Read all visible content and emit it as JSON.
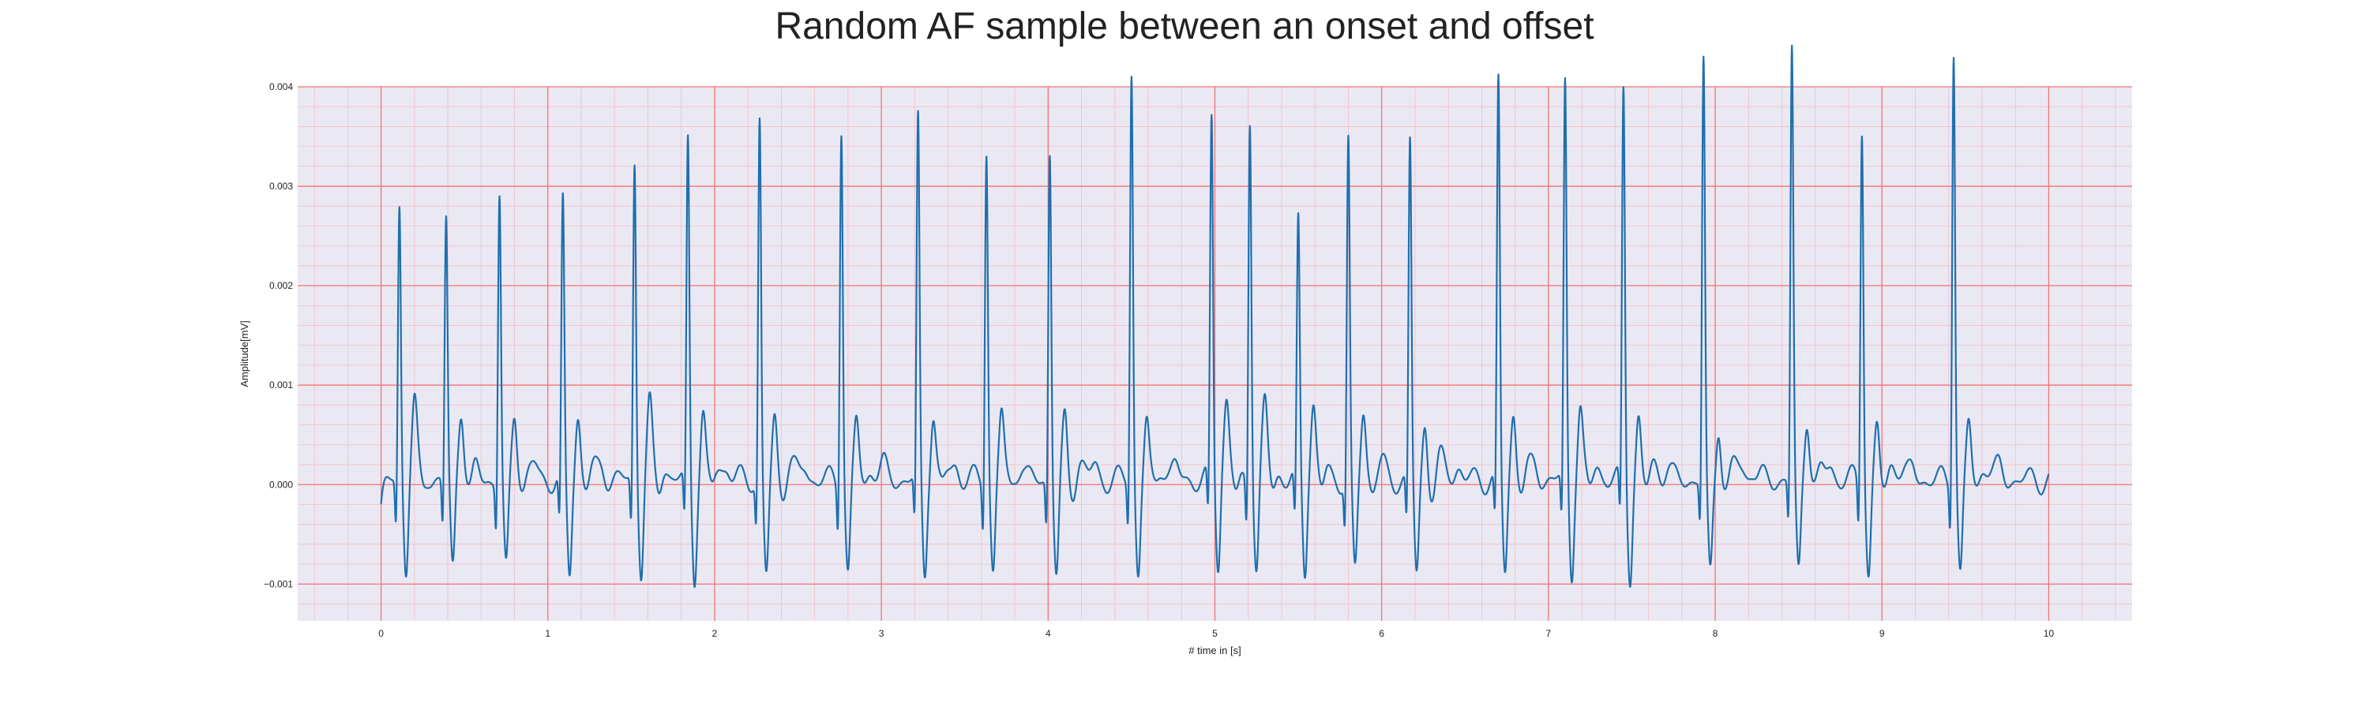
{
  "chart_data": {
    "type": "line",
    "title": "Random AF sample between an onset and offset",
    "xlabel": "# time in [s]",
    "ylabel": "Amplitude[mV]",
    "xlim": [
      -0.5,
      10.5
    ],
    "ylim": [
      -0.00137,
      0.004
    ],
    "xticks": [
      0,
      1,
      2,
      3,
      4,
      5,
      6,
      7,
      8,
      9,
      10
    ],
    "yticks": [
      -0.001,
      0.0,
      0.001,
      0.002,
      0.003,
      0.004
    ],
    "ytick_labels": [
      "−0.001",
      "0.000",
      "0.001",
      "0.002",
      "0.003",
      "0.004"
    ],
    "grid": true,
    "minor_grid": true,
    "background_color": "#eae9f3",
    "major_grid_color": "#f47272",
    "minor_grid_color": "#f4bcc6",
    "series": [
      {
        "color": "#1f6fae",
        "start": 0.0,
        "end": 10.0,
        "baseline_start": -0.00025,
        "peaks": [
          {
            "t": 0.11,
            "amp": 0.00215
          },
          {
            "t": 0.39,
            "amp": 0.00202
          },
          {
            "t": 0.71,
            "amp": 0.00229
          },
          {
            "t": 1.09,
            "amp": 0.00215
          },
          {
            "t": 1.52,
            "amp": 0.00259
          },
          {
            "t": 1.84,
            "amp": 0.00281
          },
          {
            "t": 2.27,
            "amp": 0.00302
          },
          {
            "t": 2.76,
            "amp": 0.003
          },
          {
            "t": 3.22,
            "amp": 0.003
          },
          {
            "t": 3.63,
            "amp": 0.00276
          },
          {
            "t": 4.01,
            "amp": 0.00273
          },
          {
            "t": 4.5,
            "amp": 0.00352
          },
          {
            "t": 4.98,
            "amp": 0.003
          },
          {
            "t": 5.21,
            "amp": 0.00309
          },
          {
            "t": 5.5,
            "amp": 0.00196
          },
          {
            "t": 5.8,
            "amp": 0.00279
          },
          {
            "t": 6.17,
            "amp": 0.0028
          },
          {
            "t": 6.7,
            "amp": 0.0034
          },
          {
            "t": 7.1,
            "amp": 0.00337
          },
          {
            "t": 7.45,
            "amp": 0.00333
          },
          {
            "t": 7.93,
            "amp": 0.0036
          },
          {
            "t": 8.46,
            "amp": 0.00373
          },
          {
            "t": 8.88,
            "amp": 0.00298
          },
          {
            "t": 9.43,
            "amp": 0.00378
          }
        ]
      }
    ]
  }
}
